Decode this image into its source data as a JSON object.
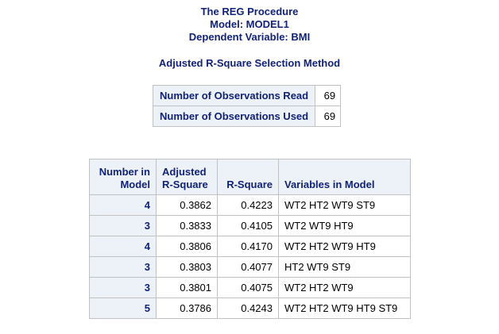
{
  "header": {
    "procedure": "The REG Procedure",
    "model": "Model: MODEL1",
    "dependent": "Dependent Variable: BMI"
  },
  "method_title": "Adjusted R-Square Selection Method",
  "observations": [
    {
      "label": "Number of Observations Read",
      "value": "69"
    },
    {
      "label": "Number of Observations Used",
      "value": "69"
    }
  ],
  "selection_table": {
    "columns": {
      "num_model": [
        "Number in",
        "Model"
      ],
      "adj_rsq": [
        "Adjusted",
        "R-Square"
      ],
      "rsq": "R-Square",
      "vars": "Variables in Model"
    },
    "rows": [
      {
        "num": "4",
        "adj": "0.3862",
        "rsq": "0.4223",
        "vars": "WT2 HT2 WT9 ST9"
      },
      {
        "num": "3",
        "adj": "0.3833",
        "rsq": "0.4105",
        "vars": "WT2 WT9 HT9"
      },
      {
        "num": "4",
        "adj": "0.3806",
        "rsq": "0.4170",
        "vars": "WT2 HT2 WT9 HT9"
      },
      {
        "num": "3",
        "adj": "0.3803",
        "rsq": "0.4077",
        "vars": "HT2 WT9 ST9"
      },
      {
        "num": "3",
        "adj": "0.3801",
        "rsq": "0.4075",
        "vars": "WT2 HT2 WT9"
      },
      {
        "num": "5",
        "adj": "0.3786",
        "rsq": "0.4243",
        "vars": "WT2 HT2 WT9 HT9 ST9"
      }
    ]
  },
  "colors": {
    "header_text": "#112277",
    "header_bg": "#edf2f9",
    "border": "#c1c1c1"
  }
}
